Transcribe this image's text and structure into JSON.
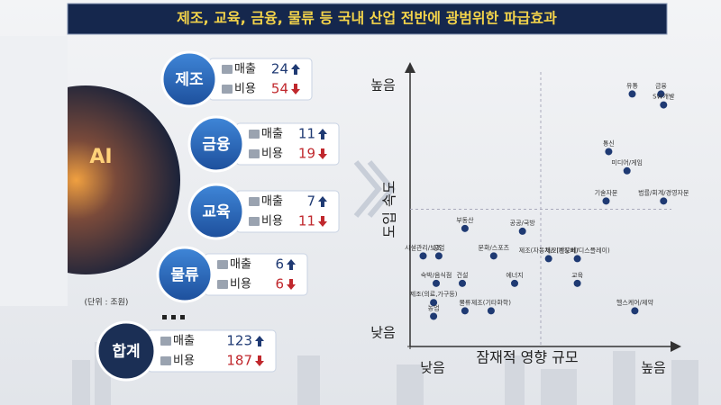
{
  "header": {
    "title": "제조, 교육, 금융, 물류 등 국내 산업 전반에 광범위한 파급효과"
  },
  "industries": [
    {
      "name": "제조",
      "sales_label": "매출",
      "sales": 24,
      "cost_label": "비용",
      "cost": 54
    },
    {
      "name": "금융",
      "sales_label": "매출",
      "sales": 11,
      "cost_label": "비용",
      "cost": 19
    },
    {
      "name": "교육",
      "sales_label": "매출",
      "sales": 7,
      "cost_label": "비용",
      "cost": 11
    },
    {
      "name": "물류",
      "sales_label": "매출",
      "sales": 6,
      "cost_label": "비용",
      "cost": 6
    }
  ],
  "unit": "(단위 : 조원)",
  "total": {
    "name": "합계",
    "sales_label": "매출",
    "sales": 123,
    "cost_label": "비용",
    "cost": 187
  },
  "chart_data": {
    "type": "scatter",
    "xlabel": "잠재적 영향 규모",
    "ylabel": "도입 속도",
    "xlim": [
      0,
      100
    ],
    "ylim": [
      0,
      100
    ],
    "xticks": [
      {
        "value": 0,
        "label": "낮음"
      },
      {
        "value": 100,
        "label": "높음"
      }
    ],
    "yticks": [
      {
        "value": 0,
        "label": "낮음"
      },
      {
        "value": 100,
        "label": "높음"
      }
    ],
    "color": "#1f3a73",
    "points": [
      {
        "label": "유통",
        "x": 85,
        "y": 92
      },
      {
        "label": "금융",
        "x": 96,
        "y": 92
      },
      {
        "label": "SW개발",
        "x": 97,
        "y": 88
      },
      {
        "label": "통신",
        "x": 76,
        "y": 71
      },
      {
        "label": "미디어/게임",
        "x": 83,
        "y": 64
      },
      {
        "label": "기술자문",
        "x": 75,
        "y": 53
      },
      {
        "label": "법률/회계/경영자문",
        "x": 97,
        "y": 53
      },
      {
        "label": "부동산",
        "x": 21,
        "y": 43
      },
      {
        "label": "공공/국방",
        "x": 43,
        "y": 42
      },
      {
        "label": "시설관리/보조",
        "x": 5,
        "y": 33
      },
      {
        "label": "공업",
        "x": 11,
        "y": 33
      },
      {
        "label": "문화/스포츠",
        "x": 32,
        "y": 33
      },
      {
        "label": "제조(자동차/기계장비)",
        "x": 53,
        "y": 32
      },
      {
        "label": "제조(반도체/디스플레이)",
        "x": 64,
        "y": 32
      },
      {
        "label": "건설",
        "x": 20,
        "y": 23
      },
      {
        "label": "숙박/음식점",
        "x": 10,
        "y": 23
      },
      {
        "label": "에너지",
        "x": 40,
        "y": 23
      },
      {
        "label": "교육",
        "x": 64,
        "y": 23
      },
      {
        "label": "제조(의료,가구등)",
        "x": 9,
        "y": 16
      },
      {
        "label": "물류",
        "x": 21,
        "y": 13
      },
      {
        "label": "제조(기타화학)",
        "x": 31,
        "y": 13
      },
      {
        "label": "농업",
        "x": 9,
        "y": 11
      },
      {
        "label": "헬스케어/제약",
        "x": 86,
        "y": 13
      }
    ]
  }
}
